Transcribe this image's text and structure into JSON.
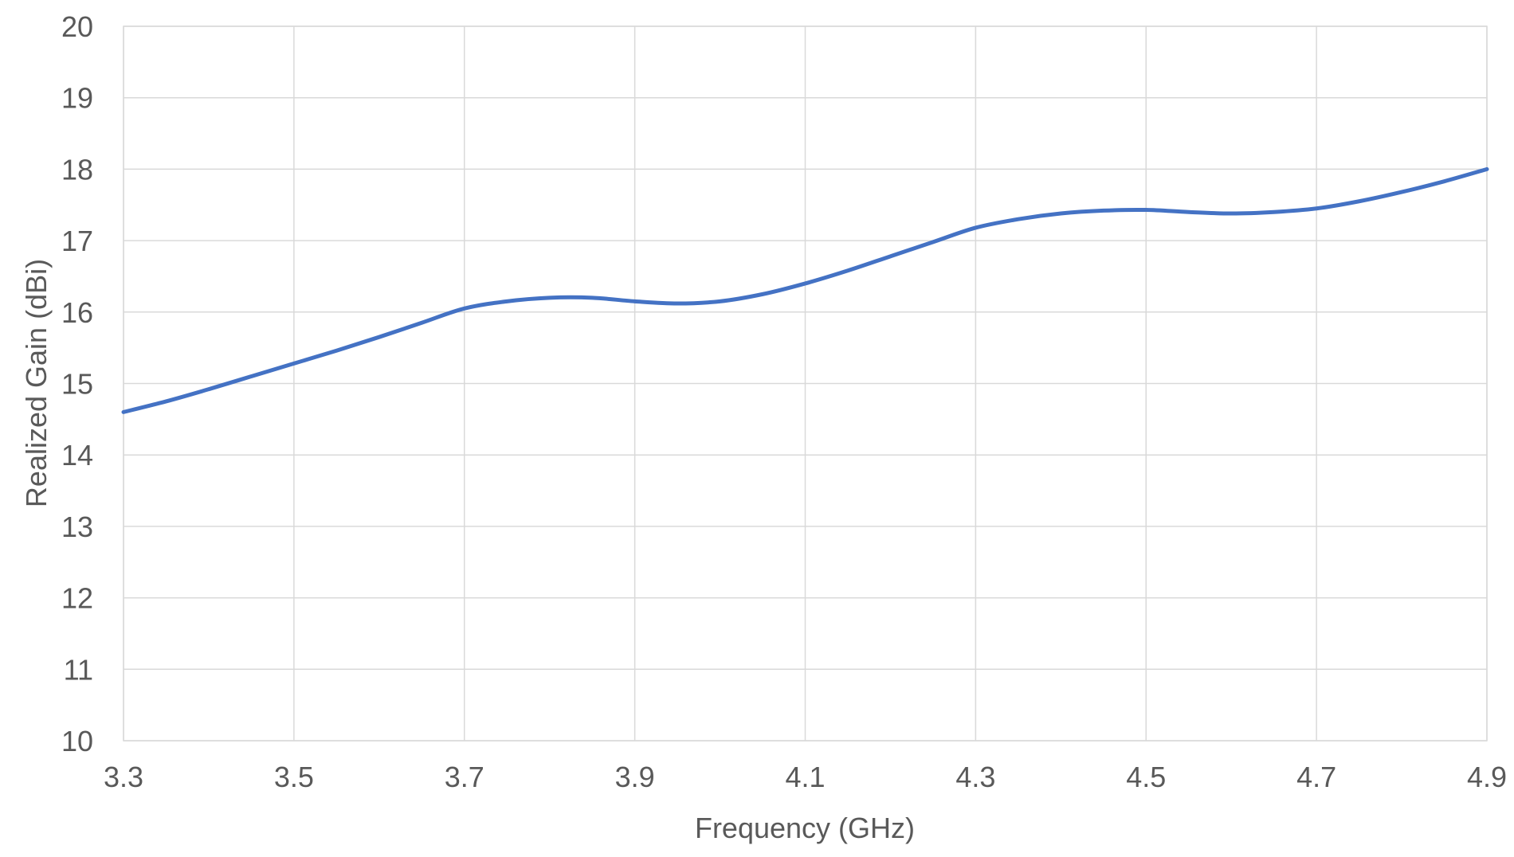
{
  "chart_data": {
    "type": "line",
    "title": "",
    "xlabel": "Frequency (GHz)",
    "ylabel": "Realized Gain (dBi)",
    "xlim": [
      3.3,
      4.9
    ],
    "ylim": [
      10,
      20
    ],
    "x_ticks": [
      "3.3",
      "3.5",
      "3.7",
      "3.9",
      "4.1",
      "4.3",
      "4.5",
      "4.7",
      "4.9"
    ],
    "y_ticks": [
      "10",
      "11",
      "12",
      "13",
      "14",
      "15",
      "16",
      "17",
      "18",
      "19",
      "20"
    ],
    "grid": true,
    "legend": "none",
    "series": [
      {
        "color": "#4472c4",
        "x": [
          3.3,
          3.35,
          3.4,
          3.45,
          3.5,
          3.55,
          3.6,
          3.65,
          3.7,
          3.75,
          3.8,
          3.85,
          3.9,
          3.95,
          4.0,
          4.05,
          4.1,
          4.15,
          4.2,
          4.25,
          4.3,
          4.35,
          4.4,
          4.45,
          4.5,
          4.55,
          4.6,
          4.65,
          4.7,
          4.75,
          4.8,
          4.85,
          4.9
        ],
        "y": [
          14.6,
          14.75,
          14.92,
          15.1,
          15.28,
          15.46,
          15.65,
          15.85,
          16.05,
          16.15,
          16.2,
          16.2,
          16.15,
          16.12,
          16.15,
          16.25,
          16.4,
          16.58,
          16.78,
          16.98,
          17.18,
          17.3,
          17.38,
          17.42,
          17.43,
          17.4,
          17.38,
          17.4,
          17.45,
          17.55,
          17.68,
          17.83,
          18.0
        ]
      }
    ]
  }
}
